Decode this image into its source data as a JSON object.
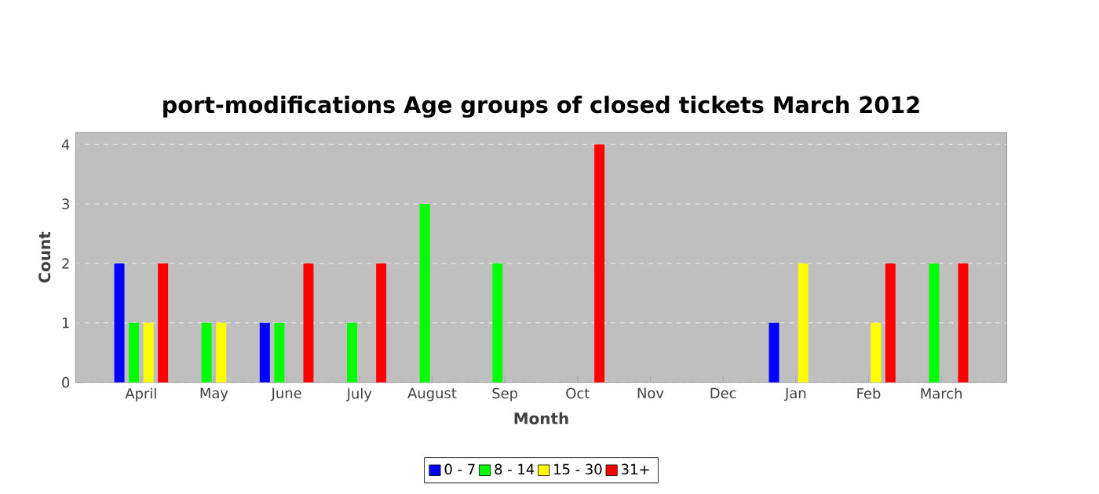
{
  "chart_data": {
    "type": "bar",
    "title": "port-modifications Age groups of closed tickets March 2012",
    "xlabel": "Month",
    "ylabel": "Count",
    "categories": [
      "April",
      "May",
      "June",
      "July",
      "August",
      "Sep",
      "Oct",
      "Nov",
      "Dec",
      "Jan",
      "Feb",
      "March"
    ],
    "series": [
      {
        "name": "0 - 7",
        "color": "#0000ff",
        "values": [
          2,
          0,
          1,
          0,
          0,
          0,
          0,
          0,
          0,
          1,
          0,
          0
        ]
      },
      {
        "name": "8 - 14",
        "color": "#00ff00",
        "values": [
          1,
          1,
          1,
          1,
          3,
          2,
          0,
          0,
          0,
          0,
          0,
          2
        ]
      },
      {
        "name": "15 - 30",
        "color": "#ffff00",
        "values": [
          1,
          1,
          0,
          0,
          0,
          0,
          0,
          0,
          0,
          2,
          1,
          0
        ]
      },
      {
        "name": "31+",
        "color": "#ff0000",
        "values": [
          2,
          0,
          2,
          2,
          0,
          0,
          4,
          0,
          0,
          0,
          2,
          2
        ]
      }
    ],
    "ylim": [
      0,
      4.2
    ],
    "yticks": [
      0,
      1,
      2,
      3,
      4
    ],
    "grid": "y",
    "legend": "bottom"
  }
}
